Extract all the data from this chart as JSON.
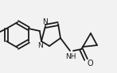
{
  "bg_color": "#f2f2f2",
  "line_color": "#1a1a1a",
  "line_width": 1.3,
  "figsize": [
    1.47,
    0.92
  ],
  "dpi": 100,
  "xlim": [
    0,
    147
  ],
  "ylim": [
    0,
    92
  ]
}
